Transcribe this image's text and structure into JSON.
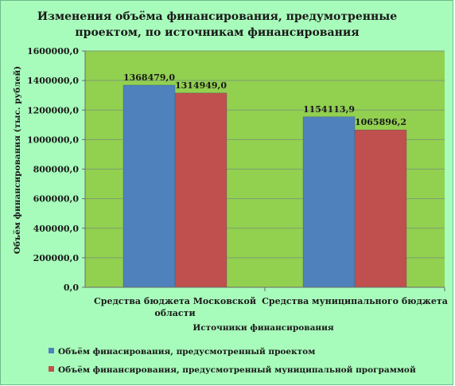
{
  "chart_data": {
    "type": "bar",
    "title_lines": [
      "Изменения объёма финансирования, предумотренные",
      "проектом, по источникам финансирования"
    ],
    "categories": [
      [
        "Средства бюджета Московской",
        "области"
      ],
      [
        "Средства муниципального бюджета"
      ]
    ],
    "series": [
      {
        "name": "Объём финасирования, предусмотренный проектом",
        "values": [
          1368479.0,
          1154113.9
        ],
        "labels": [
          "1368479,0",
          "1154113,9"
        ],
        "color": "#4f81bd"
      },
      {
        "name": "Объём финансирования, предусмотренный муниципальной программой",
        "values": [
          1314949.0,
          1065896.2
        ],
        "labels": [
          "1314949,0",
          "1065896,2"
        ],
        "color": "#c0504d"
      }
    ],
    "xlabel": "Источники финансирования",
    "ylabel": "Объём финансирования (тыс. рублей)",
    "ylim": [
      0,
      1600000
    ],
    "yticks": [
      {
        "value": 0,
        "label": "0,0"
      },
      {
        "value": 200000,
        "label": "200000,0"
      },
      {
        "value": 400000,
        "label": "400000,0"
      },
      {
        "value": 600000,
        "label": "600000,0"
      },
      {
        "value": 800000,
        "label": "800000,0"
      },
      {
        "value": 1000000,
        "label": "1000000,0"
      },
      {
        "value": 1200000,
        "label": "1200000,0"
      },
      {
        "value": 1400000,
        "label": "1400000,0"
      },
      {
        "value": 1600000,
        "label": "1600000,0"
      }
    ],
    "grid": true,
    "legend_position": "bottom",
    "colors": {
      "background": "#a8fcbb",
      "plot_area": "#92d050"
    }
  }
}
